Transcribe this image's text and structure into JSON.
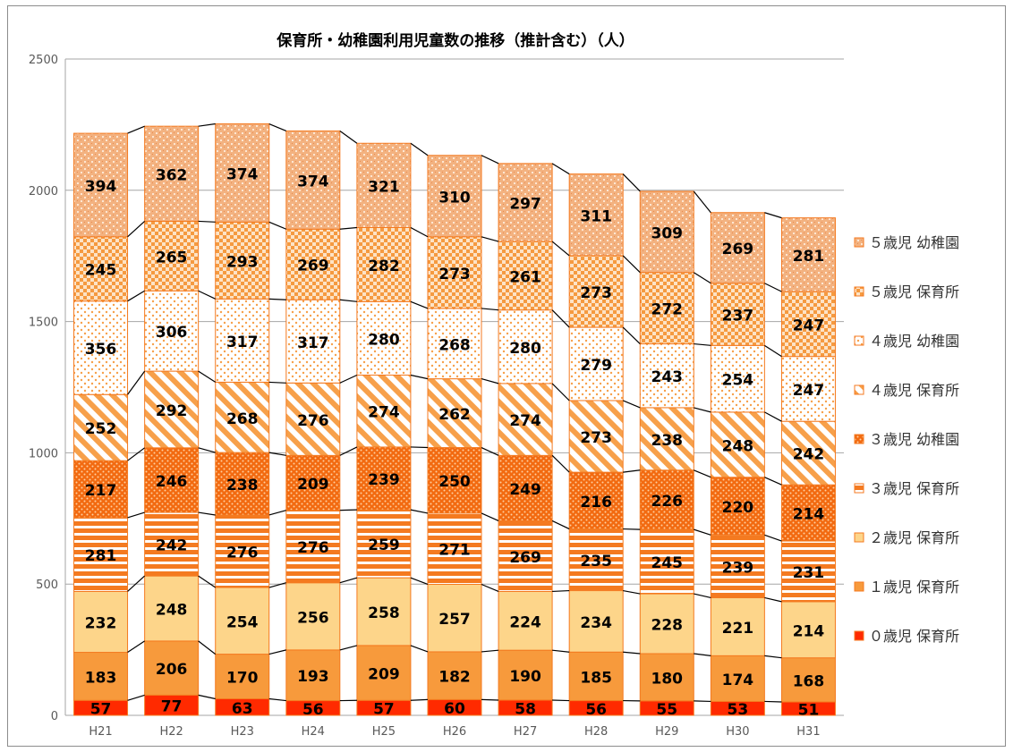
{
  "chart_data": {
    "type": "bar",
    "stacked": true,
    "title": "保育所・幼稚園利用児童数の推移（推計含む）（人）",
    "categories": [
      "H21",
      "H22",
      "H23",
      "H24",
      "H25",
      "H26",
      "H27",
      "H28",
      "H29",
      "H30",
      "H31"
    ],
    "ylim": [
      0,
      2500
    ],
    "yticks": [
      0,
      500,
      1000,
      1500,
      2000,
      2500
    ],
    "grid": true,
    "legend_position": "right",
    "series": [
      {
        "name": "０歳児 保育所",
        "color": "#ff2a00",
        "pattern": "solid",
        "values": [
          57,
          77,
          63,
          56,
          57,
          60,
          58,
          56,
          55,
          53,
          51
        ]
      },
      {
        "name": "１歳児 保育所",
        "color": "#f79a3c",
        "pattern": "solid",
        "values": [
          183,
          206,
          170,
          193,
          209,
          182,
          190,
          185,
          180,
          174,
          168
        ]
      },
      {
        "name": "２歳児 保育所",
        "color": "#fdd58a",
        "pattern": "solid",
        "values": [
          232,
          248,
          254,
          256,
          258,
          257,
          224,
          234,
          228,
          221,
          214
        ]
      },
      {
        "name": "３歳児 保育所",
        "color": "#f47a20",
        "pattern": "hstripe",
        "values": [
          281,
          242,
          276,
          276,
          259,
          271,
          269,
          235,
          245,
          239,
          231
        ]
      },
      {
        "name": "３歳児 幼稚園",
        "color": "#f26a10",
        "pattern": "dots-dark",
        "values": [
          217,
          246,
          238,
          209,
          239,
          250,
          249,
          216,
          226,
          220,
          214
        ]
      },
      {
        "name": "４歳児 保育所",
        "color": "#f7a04a",
        "pattern": "diag",
        "values": [
          252,
          292,
          268,
          276,
          274,
          262,
          274,
          273,
          238,
          248,
          242
        ]
      },
      {
        "name": "４歳児 幼稚園",
        "color": "#f7a04a",
        "pattern": "dots-light",
        "values": [
          356,
          306,
          317,
          317,
          280,
          268,
          280,
          279,
          243,
          254,
          247
        ]
      },
      {
        "name": "５歳児 保育所",
        "color": "#f59a40",
        "pattern": "checker",
        "values": [
          245,
          265,
          293,
          269,
          282,
          273,
          261,
          273,
          272,
          237,
          247
        ]
      },
      {
        "name": "５歳児 幼稚園",
        "color": "#f3a870",
        "pattern": "speckle",
        "values": [
          394,
          362,
          374,
          374,
          321,
          310,
          297,
          311,
          309,
          269,
          281
        ]
      }
    ]
  }
}
